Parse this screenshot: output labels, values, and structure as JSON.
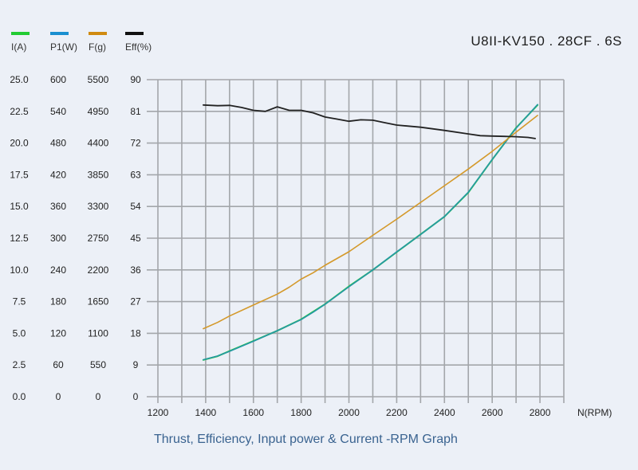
{
  "header": {
    "model": "U8II-KV150 . 28CF . 6S"
  },
  "legend": [
    {
      "label": "I(A)",
      "color": "#22cc33"
    },
    {
      "label": "P1(W)",
      "color": "#1a8fd0"
    },
    {
      "label": "F(g)",
      "color": "#d08a10"
    },
    {
      "label": "Eff(%)",
      "color": "#111111"
    }
  ],
  "caption": "Thrust, Efficiency, Input power & Current -RPM Graph",
  "chart_data": {
    "type": "line",
    "title": "Thrust, Efficiency, Input power & Current -RPM Graph",
    "xlabel": "N(RPM)",
    "xlim": [
      1200,
      2900
    ],
    "x_ticks": [
      "1200",
      "1400",
      "1600",
      "1800",
      "2000",
      "2200",
      "2400",
      "2600",
      "2800"
    ],
    "grid": true,
    "legend_position": "top-left",
    "y_axes": [
      {
        "name": "I(A)",
        "range": [
          0,
          25
        ],
        "ticks": [
          "0.0",
          "2.5",
          "5.0",
          "7.5",
          "10.0",
          "12.5",
          "15.0",
          "17.5",
          "20.0",
          "22.5",
          "25.0"
        ]
      },
      {
        "name": "P1(W)",
        "range": [
          0,
          600
        ],
        "ticks": [
          "0",
          "60",
          "120",
          "180",
          "240",
          "300",
          "360",
          "420",
          "480",
          "540",
          "600"
        ]
      },
      {
        "name": "F(g)",
        "range": [
          0,
          5500
        ],
        "ticks": [
          "0",
          "550",
          "1100",
          "1650",
          "2200",
          "2750",
          "3300",
          "3850",
          "4400",
          "4950",
          "5500"
        ]
      },
      {
        "name": "Eff(%)",
        "range": [
          0,
          90
        ],
        "ticks": [
          "0",
          "9",
          "18",
          "27",
          "36",
          "45",
          "54",
          "63",
          "72",
          "81",
          "90"
        ]
      }
    ],
    "series": [
      {
        "name": "I(A)",
        "axis": 0,
        "color": "#22cc33",
        "x": [
          1390,
          1450,
          1500,
          1600,
          1700,
          1800,
          1850,
          1900,
          2000,
          2100,
          2200,
          2300,
          2400,
          2500,
          2600,
          2700,
          2790
        ],
        "y": [
          2.9,
          3.2,
          3.6,
          4.4,
          5.2,
          6.1,
          6.7,
          7.3,
          8.7,
          10.0,
          11.4,
          12.8,
          14.2,
          16.1,
          18.7,
          21.2,
          23.0
        ]
      },
      {
        "name": "P1(W)",
        "axis": 1,
        "color": "#2696a8",
        "x": [
          1390,
          1450,
          1500,
          1600,
          1700,
          1800,
          1850,
          1900,
          2000,
          2100,
          2200,
          2300,
          2400,
          2500,
          2600,
          2700,
          2790
        ],
        "y": [
          70,
          77,
          86,
          105,
          125,
          146,
          160,
          175,
          208,
          240,
          274,
          307,
          341,
          387,
          449,
          508,
          553
        ]
      },
      {
        "name": "F(g)",
        "axis": 2,
        "color": "#d4992a",
        "x": [
          1390,
          1450,
          1500,
          1600,
          1700,
          1750,
          1800,
          1850,
          1900,
          2000,
          2100,
          2200,
          2300,
          2400,
          2500,
          2600,
          2700,
          2790
        ],
        "y": [
          1180,
          1290,
          1400,
          1590,
          1780,
          1900,
          2040,
          2150,
          2280,
          2515,
          2800,
          3080,
          3370,
          3660,
          3950,
          4256,
          4590,
          4880
        ]
      },
      {
        "name": "Eff(%)",
        "axis": 3,
        "color": "#222222",
        "x": [
          1390,
          1450,
          1500,
          1550,
          1600,
          1650,
          1700,
          1750,
          1800,
          1850,
          1900,
          1950,
          2000,
          2050,
          2100,
          2150,
          2200,
          2300,
          2400,
          2500,
          2550,
          2600,
          2650,
          2700,
          2750,
          2780
        ],
        "y": [
          82.8,
          82.6,
          82.7,
          82.1,
          81.3,
          81.0,
          82.3,
          81.3,
          81.3,
          80.6,
          79.4,
          78.8,
          78.2,
          78.6,
          78.5,
          77.8,
          77.1,
          76.5,
          75.6,
          74.6,
          74.1,
          74.0,
          73.9,
          73.8,
          73.6,
          73.3
        ]
      }
    ]
  }
}
